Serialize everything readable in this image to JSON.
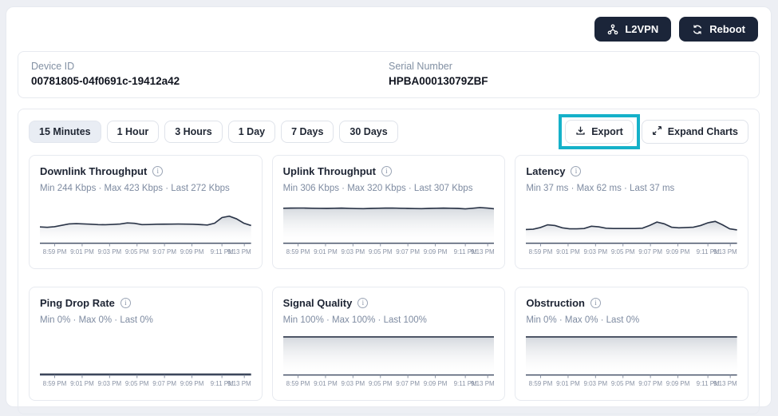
{
  "header": {
    "l2vpn_label": "L2VPN",
    "reboot_label": "Reboot"
  },
  "device_info": {
    "device_id_label": "Device ID",
    "device_id_value": "00781805-04f0691c-19412a42",
    "serial_label": "Serial Number",
    "serial_value": "HPBA00013079ZBF"
  },
  "toolbar": {
    "ranges": [
      "15 Minutes",
      "1 Hour",
      "3 Hours",
      "1 Day",
      "7 Days",
      "30 Days"
    ],
    "active_range": "15 Minutes",
    "export_label": "Export",
    "expand_label": "Expand Charts"
  },
  "icons": {
    "info_glyph": "i",
    "names": [
      "l2vpn-network-icon",
      "reboot-refresh-icon",
      "export-download-icon",
      "expand-arrows-icon",
      "info-icon"
    ]
  },
  "colors": {
    "accent_highlight": "#15b1c9",
    "dark_button": "#1b2539",
    "chart_line": "#2b3548",
    "muted_text": "#7e8ba1",
    "border": "#e7eaf0"
  },
  "chart_data": [
    {
      "type": "area",
      "title": "Downlink Throughput",
      "stats": "Min 244 Kbps  ·  Max 423 Kbps  ·  Last 272 Kbps",
      "min": 244,
      "max": 423,
      "last": 272,
      "unit": "Kbps",
      "x_ticks": [
        "8:59 PM",
        "9:01 PM",
        "9:03 PM",
        "9:05 PM",
        "9:07 PM",
        "9:09 PM",
        "9:11 PM",
        "9:13 PM"
      ],
      "ylim": [
        0,
        600
      ],
      "values": [
        250,
        244,
        252,
        275,
        298,
        302,
        298,
        293,
        286,
        285,
        290,
        296,
        314,
        308,
        286,
        289,
        292,
        294,
        295,
        296,
        295,
        292,
        288,
        280,
        310,
        400,
        423,
        380,
        310,
        272
      ]
    },
    {
      "type": "area",
      "title": "Uplink Throughput",
      "stats": "Min 306 Kbps  ·  Max 320 Kbps  ·  Last 307 Kbps",
      "min": 306,
      "max": 320,
      "last": 307,
      "unit": "Kbps",
      "x_ticks": [
        "8:59 PM",
        "9:01 PM",
        "9:03 PM",
        "9:05 PM",
        "9:07 PM",
        "9:09 PM",
        "9:11 PM",
        "9:13 PM"
      ],
      "ylim": [
        0,
        340
      ],
      "values": [
        312,
        313,
        314,
        313,
        312,
        311,
        310,
        312,
        313,
        311,
        309,
        308,
        310,
        312,
        313,
        314,
        312,
        310,
        309,
        308,
        310,
        312,
        313,
        312,
        310,
        306,
        312,
        318,
        314,
        307
      ]
    },
    {
      "type": "area",
      "title": "Latency",
      "stats": "Min 37 ms  ·  Max 62 ms  ·  Last 37 ms",
      "min": 37,
      "max": 62,
      "last": 37,
      "unit": "ms",
      "x_ticks": [
        "8:59 PM",
        "9:01 PM",
        "9:03 PM",
        "9:05 PM",
        "9:07 PM",
        "9:09 PM",
        "9:11 PM",
        "9:13 PM"
      ],
      "ylim": [
        0,
        110
      ],
      "values": [
        38,
        39,
        44,
        52,
        50,
        43,
        40,
        40,
        41,
        48,
        46,
        42,
        41,
        41,
        41,
        41,
        42,
        50,
        60,
        55,
        45,
        43,
        44,
        45,
        50,
        58,
        62,
        52,
        40,
        37
      ]
    },
    {
      "type": "area",
      "title": "Ping Drop Rate",
      "stats": "Min 0%  ·  Max 0%  ·  Last 0%",
      "min": 0,
      "max": 0,
      "last": 0,
      "unit": "%",
      "x_ticks": [
        "8:59 PM",
        "9:01 PM",
        "9:03 PM",
        "9:05 PM",
        "9:07 PM",
        "9:09 PM",
        "9:11 PM",
        "9:13 PM"
      ],
      "ylim": [
        0,
        1
      ],
      "values": [
        0,
        0,
        0,
        0,
        0,
        0,
        0,
        0,
        0,
        0,
        0,
        0,
        0,
        0,
        0,
        0,
        0,
        0,
        0,
        0,
        0,
        0,
        0,
        0,
        0,
        0,
        0,
        0,
        0,
        0
      ]
    },
    {
      "type": "area",
      "title": "Signal Quality",
      "stats": "Min 100%  ·  Max 100%  ·  Last 100%",
      "min": 100,
      "max": 100,
      "last": 100,
      "unit": "%",
      "x_ticks": [
        "8:59 PM",
        "9:01 PM",
        "9:03 PM",
        "9:05 PM",
        "9:07 PM",
        "9:09 PM",
        "9:11 PM",
        "9:13 PM"
      ],
      "ylim": [
        0,
        100
      ],
      "values": [
        100,
        100,
        100,
        100,
        100,
        100,
        100,
        100,
        100,
        100,
        100,
        100,
        100,
        100,
        100,
        100,
        100,
        100,
        100,
        100,
        100,
        100,
        100,
        100,
        100,
        100,
        100,
        100,
        100,
        100
      ]
    },
    {
      "type": "area",
      "title": "Obstruction",
      "stats": "Min 0%  ·  Max 0%  ·  Last 0%",
      "min": 0,
      "max": 0,
      "last": 0,
      "unit": "%",
      "x_ticks": [
        "8:59 PM",
        "9:01 PM",
        "9:03 PM",
        "9:05 PM",
        "9:07 PM",
        "9:09 PM",
        "9:11 PM",
        "9:13 PM"
      ],
      "ylim": [
        0,
        0
      ],
      "values": [
        0,
        0,
        0,
        0,
        0,
        0,
        0,
        0,
        0,
        0,
        0,
        0,
        0,
        0,
        0,
        0,
        0,
        0,
        0,
        0,
        0,
        0,
        0,
        0,
        0,
        0,
        0,
        0,
        0,
        0
      ]
    }
  ]
}
